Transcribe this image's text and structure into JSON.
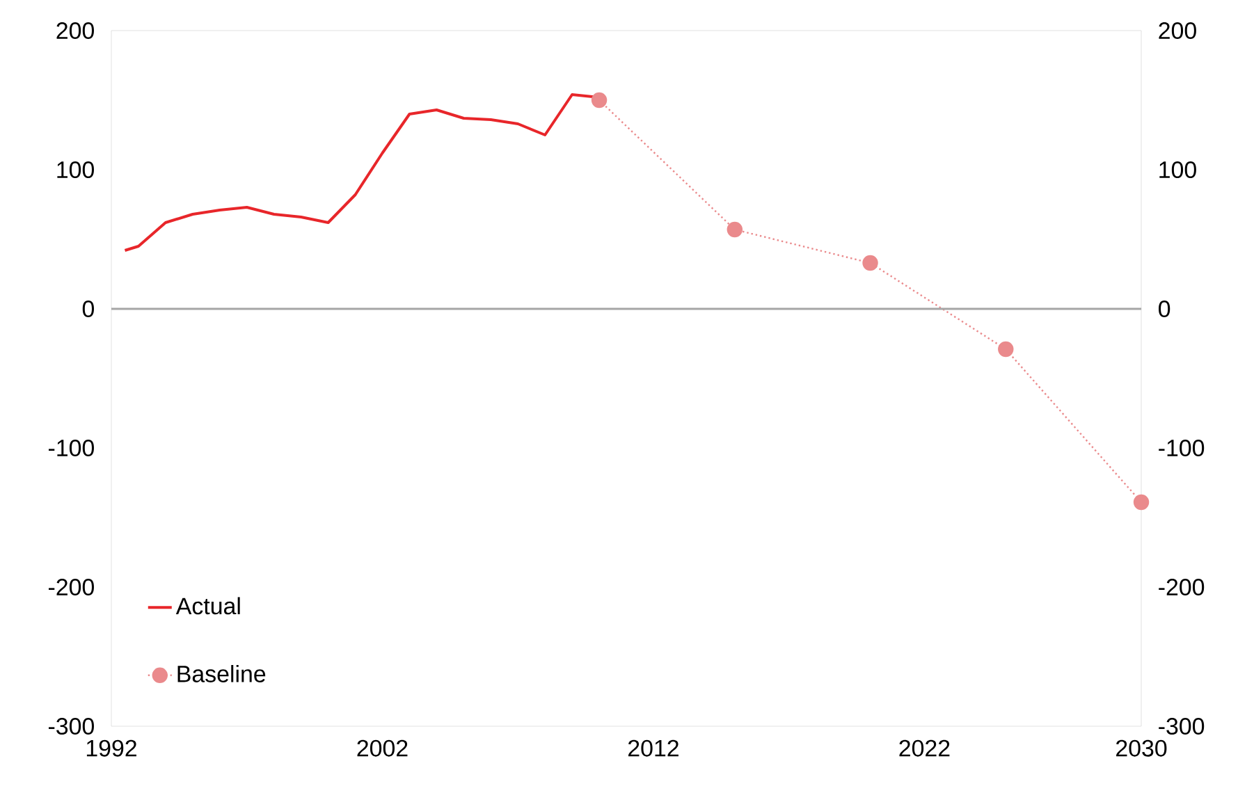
{
  "chart_data": {
    "type": "line",
    "xlim": [
      1992,
      2030
    ],
    "xticks": [
      1992,
      2002,
      2012,
      2022,
      2030
    ],
    "ylim": [
      -300,
      200
    ],
    "yticks": [
      -300,
      -200,
      -100,
      0,
      100,
      200
    ],
    "y2lim": [
      -300,
      200
    ],
    "y2ticks": [
      -300,
      -200,
      -100,
      0,
      100,
      200
    ],
    "ref_lines": [
      {
        "axis": "y",
        "value": 0,
        "color": "#a6a6a6"
      }
    ],
    "legend": "bottom left",
    "grid": false,
    "series": [
      {
        "name": "Actual",
        "color": "#e8262a",
        "marker": "none",
        "line_style": "solid",
        "x": [
          1992.5,
          1993,
          1994,
          1995,
          1996,
          1997,
          1998,
          1999,
          2000,
          2001,
          2002,
          2003,
          2004,
          2005,
          2006,
          2007,
          2008,
          2009,
          2010
        ],
        "values": [
          42,
          45,
          62,
          68,
          71,
          73,
          68,
          66,
          62,
          82,
          112,
          140,
          143,
          137,
          136,
          133,
          125,
          154,
          152
        ]
      },
      {
        "name": "Baseline",
        "color": "#ea8a8c",
        "marker": "circle",
        "line_style": "dotted",
        "x": [
          2010,
          2015,
          2020,
          2025,
          2030
        ],
        "values": [
          150,
          57,
          33,
          -29,
          -139
        ]
      }
    ]
  }
}
